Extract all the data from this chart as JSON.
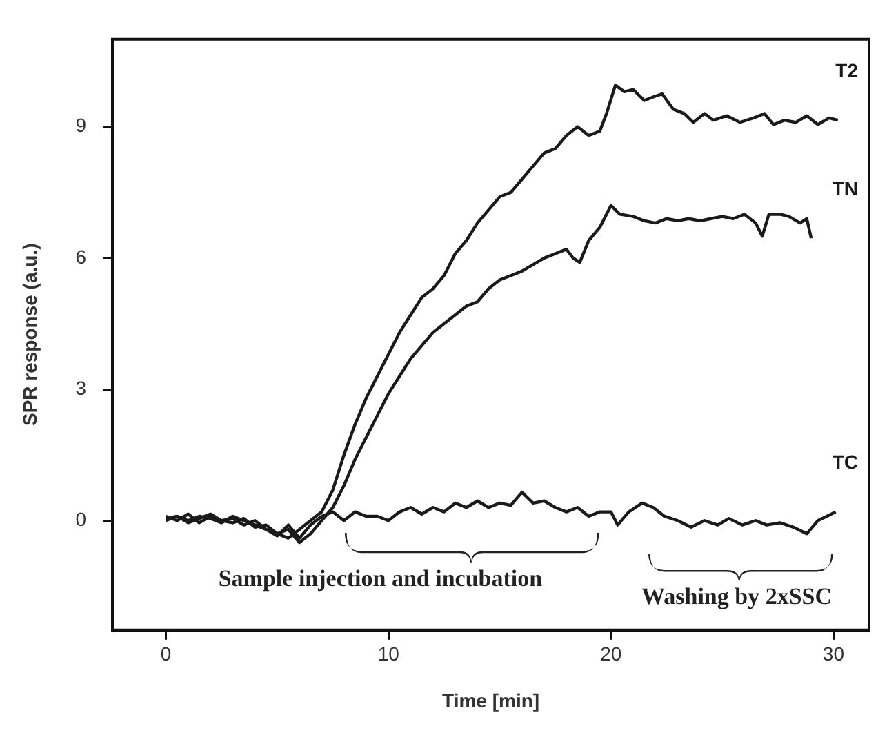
{
  "chart_data": {
    "type": "line",
    "xlabel": "Time [min]",
    "ylabel": "SPR response (a.u.)",
    "xlim": [
      -2.4,
      31.6
    ],
    "ylim": [
      -2.5,
      11
    ],
    "xticks": [
      0,
      10,
      20,
      30
    ],
    "yticks": [
      0,
      3,
      6,
      9
    ],
    "grid": false,
    "legend": false,
    "marker": "none",
    "line_style": "solid",
    "annotations": [
      "Sample injection and incubation",
      "Washing by 2xSSC"
    ],
    "series": [
      {
        "name": "T2",
        "color": "#1a1a1a",
        "x": [
          0,
          0.5,
          1,
          1.5,
          2,
          2.5,
          3,
          3.5,
          4,
          4.5,
          5,
          5.5,
          6,
          6.5,
          7,
          7.5,
          8,
          8.5,
          9,
          9.5,
          10,
          10.5,
          11,
          11.5,
          12,
          12.5,
          13,
          13.5,
          14,
          14.5,
          15,
          15.5,
          16,
          16.5,
          17,
          17.5,
          18,
          18.5,
          19,
          19.5,
          19.8,
          20.2,
          20.6,
          21,
          21.5,
          22,
          22.3,
          22.8,
          23.3,
          23.7,
          24.2,
          24.6,
          25.2,
          25.8,
          26.4,
          26.9,
          27.3,
          27.8,
          28.3,
          28.8,
          29.3,
          29.8,
          30.2
        ],
        "values": [
          0.05,
          0.1,
          0,
          0.1,
          0.05,
          -0.05,
          0.1,
          0,
          -0.1,
          -0.2,
          -0.3,
          -0.4,
          -0.2,
          0,
          0.2,
          0.7,
          1.5,
          2.2,
          2.8,
          3.3,
          3.8,
          4.3,
          4.7,
          5.1,
          5.3,
          5.6,
          6.1,
          6.4,
          6.8,
          7.1,
          7.4,
          7.5,
          7.8,
          8.1,
          8.4,
          8.5,
          8.8,
          9,
          8.8,
          8.9,
          9.3,
          9.95,
          9.8,
          9.85,
          9.6,
          9.7,
          9.75,
          9.4,
          9.3,
          9.1,
          9.3,
          9.15,
          9.25,
          9.1,
          9.2,
          9.3,
          9.05,
          9.15,
          9.1,
          9.25,
          9.05,
          9.2,
          9.15
        ]
      },
      {
        "name": "TN",
        "color": "#1a1a1a",
        "x": [
          0,
          0.5,
          1,
          1.5,
          2,
          2.5,
          3,
          3.5,
          4,
          4.5,
          5,
          5.5,
          6,
          6.5,
          7,
          7.5,
          8,
          8.5,
          9,
          9.5,
          10,
          10.5,
          11,
          11.5,
          12,
          12.5,
          13,
          13.5,
          14,
          14.5,
          15,
          15.5,
          16,
          16.5,
          17,
          17.5,
          18,
          18.3,
          18.6,
          19,
          19.5,
          20,
          20.4,
          21,
          21.5,
          22,
          22.5,
          23,
          23.5,
          24,
          24.5,
          25,
          25.5,
          26,
          26.5,
          26.8,
          27.1,
          27.6,
          28,
          28.5,
          28.8,
          29
        ],
        "values": [
          0,
          0.1,
          -0.05,
          0.05,
          0.15,
          0,
          -0.05,
          0.05,
          -0.15,
          -0.1,
          -0.3,
          -0.2,
          -0.5,
          -0.3,
          0,
          0.3,
          0.8,
          1.4,
          1.9,
          2.4,
          2.9,
          3.3,
          3.7,
          4,
          4.3,
          4.5,
          4.7,
          4.9,
          5,
          5.3,
          5.5,
          5.6,
          5.7,
          5.85,
          6,
          6.1,
          6.2,
          6,
          5.9,
          6.4,
          6.7,
          7.2,
          7,
          6.95,
          6.85,
          6.8,
          6.9,
          6.85,
          6.9,
          6.85,
          6.9,
          6.95,
          6.9,
          7,
          6.8,
          6.5,
          7,
          7,
          6.95,
          6.8,
          6.9,
          6.45
        ]
      },
      {
        "name": "TC",
        "color": "#1a1a1a",
        "x": [
          0,
          0.5,
          1,
          1.5,
          2,
          2.5,
          3,
          3.5,
          4,
          4.5,
          5,
          5.5,
          6,
          6.5,
          7,
          7.5,
          8,
          8.5,
          9,
          9.5,
          10,
          10.5,
          11,
          11.5,
          12,
          12.5,
          13,
          13.5,
          14,
          14.5,
          15,
          15.5,
          16,
          16.5,
          17,
          17.5,
          18,
          18.5,
          19,
          19.5,
          20,
          20.3,
          20.8,
          21.4,
          21.9,
          22.4,
          23,
          23.6,
          24.2,
          24.8,
          25.3,
          25.9,
          26.5,
          27,
          27.6,
          28.2,
          28.8,
          29.3,
          29.7,
          30.1
        ],
        "values": [
          0.1,
          0,
          0.15,
          -0.05,
          0.1,
          0,
          0.05,
          -0.1,
          0,
          -0.2,
          -0.35,
          -0.1,
          -0.4,
          -0.1,
          0.1,
          0.2,
          0,
          0.2,
          0.1,
          0.1,
          0,
          0.2,
          0.3,
          0.15,
          0.3,
          0.2,
          0.4,
          0.3,
          0.45,
          0.3,
          0.4,
          0.35,
          0.65,
          0.4,
          0.45,
          0.3,
          0.2,
          0.3,
          0.1,
          0.2,
          0.2,
          -0.1,
          0.2,
          0.4,
          0.3,
          0.1,
          0,
          -0.15,
          0,
          -0.1,
          0.05,
          -0.1,
          0,
          -0.1,
          -0.05,
          -0.15,
          -0.3,
          0,
          0.1,
          0.2
        ]
      }
    ]
  }
}
